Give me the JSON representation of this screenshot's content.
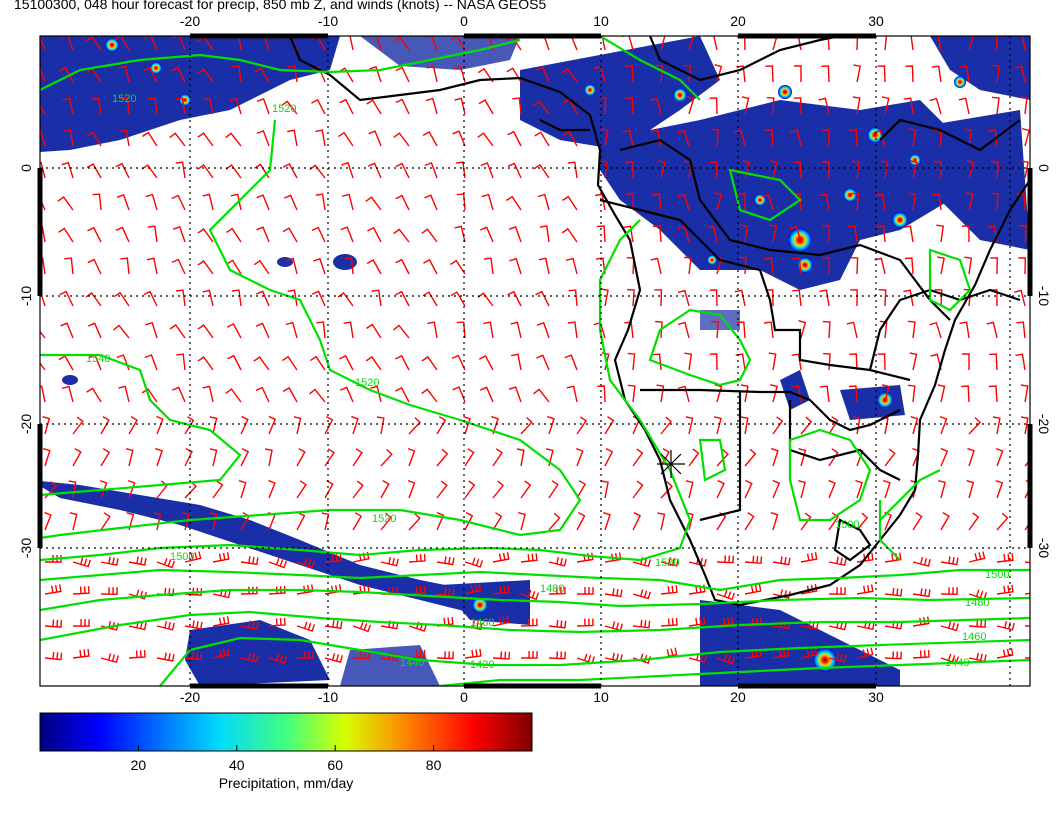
{
  "title": "15100300, 048 hour forecast for precip, 850 mb Z, and winds (knots) -- NASA GEOS5",
  "lon_ticks": [
    "-20",
    "-10",
    "0",
    "10",
    "20",
    "30"
  ],
  "lat_ticks": [
    "0",
    "-10",
    "-20",
    "-30"
  ],
  "contour_labels": [
    "1520",
    "1520",
    "1540",
    "1520",
    "1520",
    "1500",
    "1520",
    "1500",
    "1480",
    "1460",
    "1440",
    "1420",
    "1500",
    "1480",
    "1460",
    "1440"
  ],
  "colorbar": {
    "label": "Precipitation, mm/day",
    "ticks": [
      "20",
      "40",
      "60",
      "80"
    ],
    "min": 0,
    "max": 100
  },
  "colors": {
    "contour": "#00e000",
    "wind_barb": "#ff0000",
    "coast": "#000000",
    "precip_low": "#00008b",
    "precip_high": "#800000"
  }
}
